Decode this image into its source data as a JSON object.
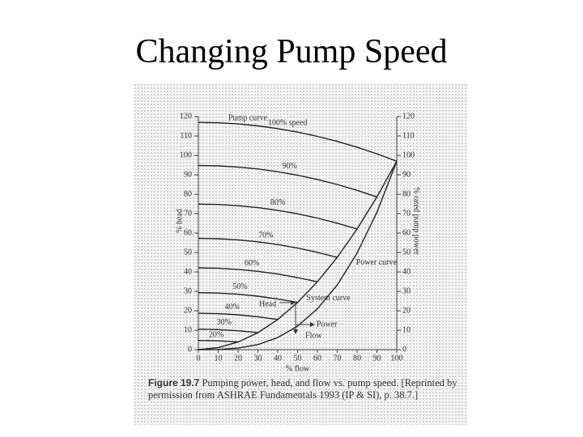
{
  "title": "Changing Pump Speed",
  "chart_data": {
    "type": "line",
    "y_label": "% head",
    "y2_label": "% rated pump power",
    "x_label": "% flow",
    "annotations": [
      "Pump curve",
      "Head",
      "Power",
      "Flow"
    ],
    "figure_label": "Figure 19.7",
    "caption": "Pumping power, head, and flow vs. pump speed. [Reprinted by permission from ASHRAE Fundamentals 1993 (IP & SI), p. 38.7.]",
    "x": [
      0,
      10,
      20,
      30,
      40,
      50,
      60,
      70,
      80,
      90,
      100
    ],
    "xlim": [
      0,
      100
    ],
    "xticks": [
      0,
      10,
      20,
      30,
      40,
      50,
      60,
      70,
      80,
      90,
      100
    ],
    "ylim": [
      0,
      120
    ],
    "yticks": [
      0,
      10,
      20,
      30,
      40,
      50,
      60,
      70,
      80,
      90,
      100,
      110,
      120
    ],
    "y2lim": [
      0,
      120
    ],
    "y2ticks": [
      0,
      10,
      20,
      30,
      40,
      50,
      60,
      70,
      80,
      90,
      100,
      110,
      120
    ],
    "series": [
      {
        "name": "100% speed",
        "color": "#222222",
        "values": [
          117,
          116.8,
          116.2,
          115.2,
          113.8,
          112,
          109.8,
          107.2,
          104.2,
          100.8,
          97
        ]
      },
      {
        "name": "90%",
        "color": "#222222",
        "values": [
          94.8,
          94.6,
          94.0,
          93.0,
          91.6,
          89.8,
          87.6,
          85.0,
          82.0,
          78.6,
          null
        ]
      },
      {
        "name": "80%",
        "color": "#222222",
        "values": [
          74.9,
          74.7,
          74.1,
          73.1,
          71.7,
          69.9,
          67.7,
          65.1,
          62.1,
          null,
          null
        ]
      },
      {
        "name": "70%",
        "color": "#222222",
        "values": [
          57.3,
          57.1,
          56.5,
          55.5,
          54.1,
          52.3,
          50.1,
          47.5,
          null,
          null,
          null
        ]
      },
      {
        "name": "60%",
        "color": "#222222",
        "values": [
          42.1,
          41.9,
          41.3,
          40.3,
          38.9,
          37.1,
          34.9,
          null,
          null,
          null,
          null
        ]
      },
      {
        "name": "50%",
        "color": "#222222",
        "values": [
          29.3,
          29.1,
          28.5,
          27.5,
          26.1,
          24.3,
          null,
          null,
          null,
          null,
          null
        ]
      },
      {
        "name": "40%",
        "color": "#222222",
        "values": [
          18.7,
          18.5,
          17.9,
          16.9,
          15.5,
          null,
          null,
          null,
          null,
          null,
          null
        ]
      },
      {
        "name": "30%",
        "color": "#222222",
        "values": [
          10.5,
          10.3,
          9.7,
          8.7,
          null,
          null,
          null,
          null,
          null,
          null,
          null
        ]
      },
      {
        "name": "20%",
        "color": "#222222",
        "values": [
          4.7,
          4.5,
          3.9,
          null,
          null,
          null,
          null,
          null,
          null,
          null,
          null
        ]
      },
      {
        "name": "System curve",
        "color": "#222222",
        "values": [
          0,
          1,
          3.9,
          8.7,
          15.5,
          24.3,
          34.9,
          47.5,
          62.1,
          78.6,
          97
        ]
      },
      {
        "name": "Power curve",
        "color": "#222222",
        "axis": "y2",
        "values": [
          0,
          0.1,
          0.8,
          2.6,
          6.2,
          12.1,
          21,
          33.3,
          49.7,
          70.7,
          97
        ]
      }
    ]
  }
}
